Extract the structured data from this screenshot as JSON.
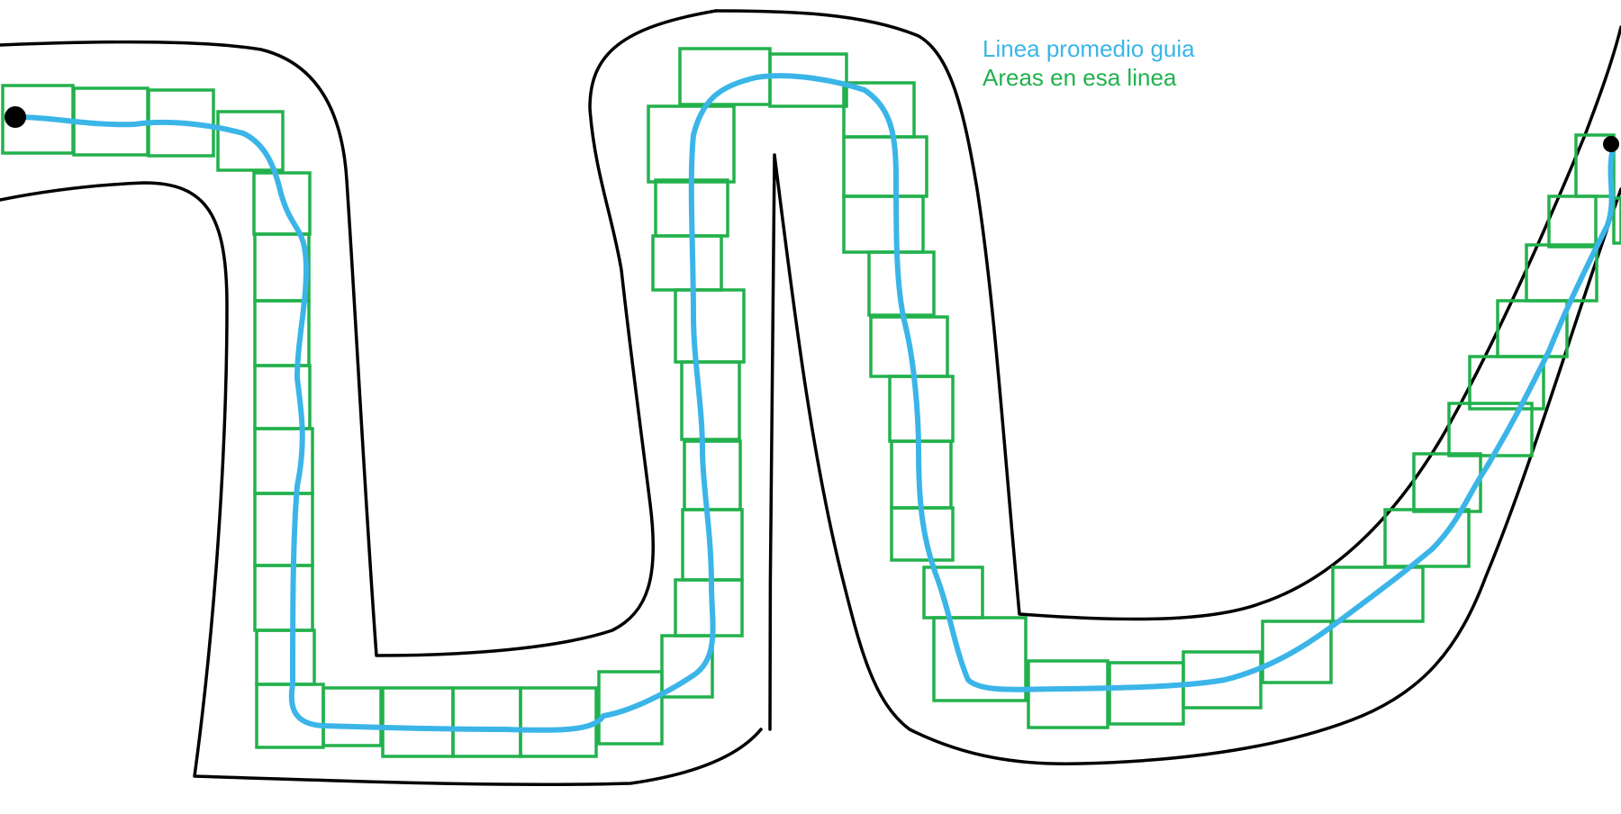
{
  "legend": {
    "guide_line": "Linea promedio guia",
    "areas": "Areas en esa linea"
  },
  "colors": {
    "track_border": "#000000",
    "guide_line": "#3bb5e8",
    "areas": "#22b14c",
    "endpoint": "#000000",
    "background": "#ffffff"
  }
}
